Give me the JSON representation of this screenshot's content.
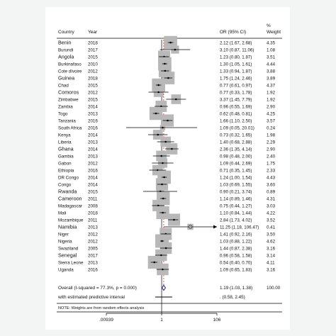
{
  "chart_data": {
    "type": "forest",
    "headers": {
      "country": "Country",
      "year": "Year",
      "or": "OR (95% CI)",
      "weight_top": "%",
      "weight": "Weight"
    },
    "x_axis": {
      "scale": "log",
      "ticks": [
        0.00939,
        1,
        106
      ],
      "tick_labels": [
        ".00939",
        "1",
        "106"
      ]
    },
    "studies": [
      {
        "country": "Benin",
        "year": "2018",
        "or": 2.12,
        "lo": 1.67,
        "hi": 2.68,
        "or_text": "2.12 (1.67, 2.68)",
        "weight": "4.35"
      },
      {
        "country": "Burundi",
        "year": "2017",
        "or": 3.1,
        "lo": 0.87,
        "hi": 11.06,
        "or_text": "3.10 (0.87, 11.06)",
        "weight": "1.08"
      },
      {
        "country": "Angola",
        "year": "2015",
        "or": 1.23,
        "lo": 0.8,
        "hi": 1.87,
        "or_text": "1.23 (0.80, 1.87)",
        "weight": "3.51"
      },
      {
        "country": "Burkinafaso",
        "year": "2010",
        "or": 1.3,
        "lo": 1.05,
        "hi": 1.61,
        "or_text": "1.30 (1.05, 1.61)",
        "weight": "4.44"
      },
      {
        "country": "Cote dIvoire",
        "year": "2012",
        "or": 1.33,
        "lo": 0.94,
        "hi": 1.87,
        "or_text": "1.33 (0.94, 1.87)",
        "weight": "3.88"
      },
      {
        "country": "Guinea",
        "year": "2018",
        "or": 1.75,
        "lo": 1.24,
        "hi": 2.46,
        "or_text": "1.75 (1.24, 2.46)",
        "weight": "3.89"
      },
      {
        "country": "Chad",
        "year": "2015",
        "or": 0.77,
        "lo": 0.61,
        "hi": 0.97,
        "or_text": "0.77 (0.61, 0.97)",
        "weight": "4.37"
      },
      {
        "country": "Comoros",
        "year": "2012",
        "or": 0.77,
        "lo": 0.33,
        "hi": 1.78,
        "or_text": "0.77 (0.33, 1.78)",
        "weight": "1.92"
      },
      {
        "country": "Zimbabwe",
        "year": "2015",
        "or": 3.37,
        "lo": 1.45,
        "hi": 7.79,
        "or_text": "3.37 (1.45, 7.79)",
        "weight": "1.92"
      },
      {
        "country": "Zambia",
        "year": "2014",
        "or": 0.96,
        "lo": 0.55,
        "hi": 1.69,
        "or_text": "0.96 (0.55, 1.69)",
        "weight": "2.90"
      },
      {
        "country": "Togo",
        "year": "2013",
        "or": 0.62,
        "lo": 0.48,
        "hi": 0.81,
        "or_text": "0.62 (0.48, 0.81)",
        "weight": "4.25"
      },
      {
        "country": "Tanzania",
        "year": "2016",
        "or": 1.66,
        "lo": 1.1,
        "hi": 2.5,
        "or_text": "1.66 (1.10, 2.50)",
        "weight": "3.57"
      },
      {
        "country": "South Africa",
        "year": "2016",
        "or": 1.09,
        "lo": 0.05,
        "hi": 20.01,
        "or_text": "1.09 (0.05, 20.01)",
        "weight": "0.24"
      },
      {
        "country": "Kenya",
        "year": "2014",
        "or": 0.73,
        "lo": 0.32,
        "hi": 1.65,
        "or_text": "0.73 (0.32, 1.65)",
        "weight": "1.98"
      },
      {
        "country": "Liberia",
        "year": "2013",
        "or": 1.4,
        "lo": 0.68,
        "hi": 2.88,
        "or_text": "1.40 (0.68, 2.88)",
        "weight": "2.29"
      },
      {
        "country": "Ghana",
        "year": "2014",
        "or": 2.36,
        "lo": 1.35,
        "hi": 4.14,
        "or_text": "2.36 (1.35, 4.14)",
        "weight": "2.90"
      },
      {
        "country": "Gambia",
        "year": "2013",
        "or": 0.98,
        "lo": 0.48,
        "hi": 2.0,
        "or_text": "0.98 (0.48, 2.00)",
        "weight": "2.40"
      },
      {
        "country": "Gabon",
        "year": "2012",
        "or": 1.09,
        "lo": 0.44,
        "hi": 2.69,
        "or_text": "1.09 (0.44, 2.69)",
        "weight": "1.75"
      },
      {
        "country": "Ethiopia",
        "year": "2016",
        "or": 0.71,
        "lo": 0.35,
        "hi": 1.45,
        "or_text": "0.71 (0.35, 1.45)",
        "weight": "2.33"
      },
      {
        "country": "DR Congo",
        "year": "2014",
        "or": 1.24,
        "lo": 1.0,
        "hi": 1.54,
        "or_text": "1.24 (1.00, 1.54)",
        "weight": "4.43"
      },
      {
        "country": "Congo",
        "year": "2014",
        "or": 1.03,
        "lo": 0.69,
        "hi": 1.55,
        "or_text": "1.03 (0.69, 1.55)",
        "weight": "3.60"
      },
      {
        "country": "Rwanda",
        "year": "2015",
        "or": 0.9,
        "lo": 0.21,
        "hi": 3.74,
        "or_text": "0.90 (0.21, 3.74)",
        "weight": "0.89"
      },
      {
        "country": "Cameroon",
        "year": "2011",
        "or": 1.14,
        "lo": 0.89,
        "hi": 1.46,
        "or_text": "1.14 (0.89, 1.46)",
        "weight": "4.31"
      },
      {
        "country": "Madagascar",
        "year": "2008",
        "or": 0.75,
        "lo": 0.44,
        "hi": 1.27,
        "or_text": "0.75 (0.44, 1.27)",
        "weight": "3.03"
      },
      {
        "country": "Mali",
        "year": "2018",
        "or": 1.1,
        "lo": 0.84,
        "hi": 1.44,
        "or_text": "1.10 (0.84, 1.44)",
        "weight": "4.22"
      },
      {
        "country": "Mozambique",
        "year": "2011",
        "or": 2.84,
        "lo": 1.73,
        "hi": 4.02,
        "or_text": "2.84 (1.73, 4.02)",
        "weight": "3.52"
      },
      {
        "country": "Namibia",
        "year": "2013",
        "or": 11.25,
        "lo": 1.18,
        "hi": 106.47,
        "or_text": "11.25 (1.18, 106.47)",
        "weight": "0.41"
      },
      {
        "country": "Niger",
        "year": "2012",
        "or": 1.41,
        "lo": 0.92,
        "hi": 2.16,
        "or_text": "1.41 (0.92, 2.16)",
        "weight": "3.50"
      },
      {
        "country": "Nigeria",
        "year": "2012",
        "or": 1.03,
        "lo": 0.88,
        "hi": 1.22,
        "or_text": "1.03 (0.88, 1.22)",
        "weight": "4.62"
      },
      {
        "country": "Swaziland",
        "year": "2005",
        "or": 1.44,
        "lo": 0.87,
        "hi": 2.38,
        "or_text": "1.44 (0.87, 2.38)",
        "weight": "3.16"
      },
      {
        "country": "Senegal",
        "year": "2017",
        "or": 0.96,
        "lo": 0.58,
        "hi": 1.58,
        "or_text": "0.96 (0.58, 1.58)",
        "weight": "3.14"
      },
      {
        "country": "Sierra Leone",
        "year": "2013",
        "or": 0.54,
        "lo": 0.4,
        "hi": 0.7,
        "or_text": "0.54 (0.40, 0.70)",
        "weight": "4.11"
      },
      {
        "country": "Uganda",
        "year": "2016",
        "or": 1.09,
        "lo": 0.65,
        "hi": 1.83,
        "or_text": "1.09 (0.65, 1.83)",
        "weight": "3.16"
      }
    ],
    "overall": {
      "label": "Overall  (I-squared = 77.3%, p = 0.000)",
      "or": 1.19,
      "lo": 1.03,
      "hi": 1.38,
      "or_text": "1.19 (1.03, 1.38)",
      "weight": "100.00"
    },
    "predictive": {
      "label": "with estimated predictive interval",
      "lo": 0.58,
      "hi": 2.45,
      "or_text": ".   (0.58, 2.45)"
    },
    "note": "NOTE: Weights are from random effects analysis",
    "colors": {
      "box": "#b8b8b8",
      "line": "#000000",
      "diamond": "#1a1a7a"
    }
  }
}
